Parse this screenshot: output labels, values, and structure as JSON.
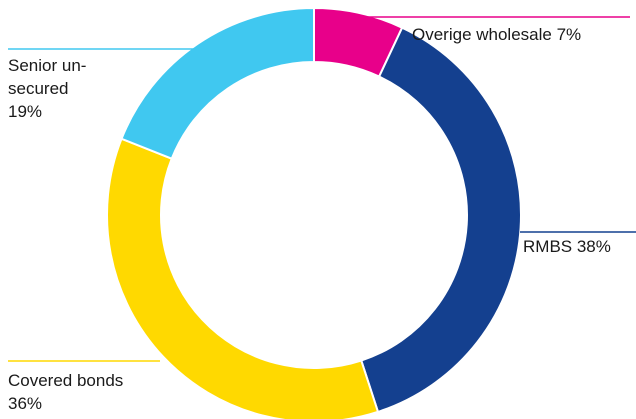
{
  "chart_data": {
    "type": "pie",
    "title": "",
    "categories": [
      "Overige wholesale",
      "RMBS",
      "Covered bonds",
      "Senior unsecured"
    ],
    "values": [
      7,
      38,
      36,
      19
    ],
    "colors": [
      "#e8008a",
      "#14408f",
      "#ffd900",
      "#40c8f0"
    ],
    "labels": [
      {
        "lines": [
          "Overige wholesale 7%"
        ]
      },
      {
        "lines": [
          "RMBS 38%"
        ]
      },
      {
        "lines": [
          "Covered bonds",
          "36%"
        ]
      },
      {
        "lines": [
          "Senior un-",
          "secured",
          "19%"
        ]
      }
    ],
    "legend": "none",
    "donut": true
  }
}
